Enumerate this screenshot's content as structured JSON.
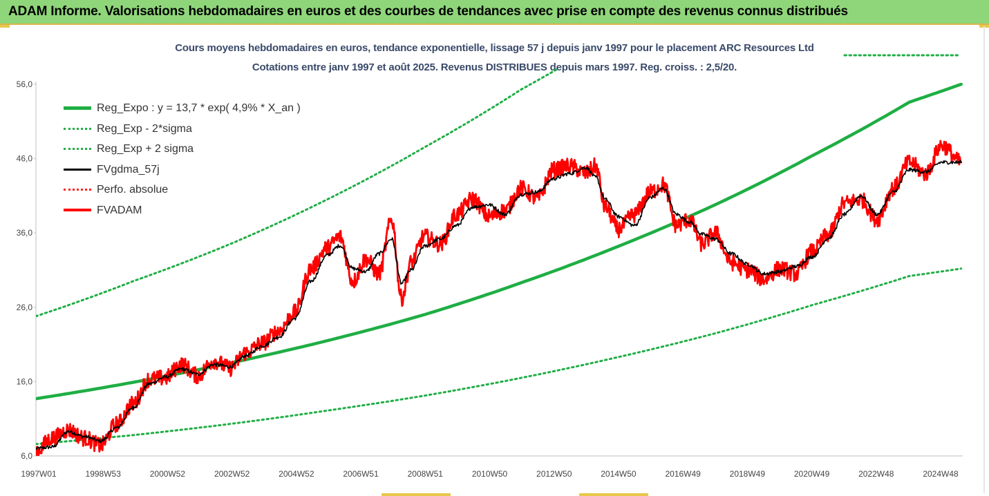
{
  "header": {
    "title": "ADAM Informe. Valorisations hebdomadaires en euros et des courbes de tendances avec prise en compte des revenus connus distribués"
  },
  "chart_data": {
    "type": "line",
    "title": "Cours moyens hebdomadaires en euros, tendance exponentielle, lissage 57 j depuis janv 1997 pour le placement ARC Resources Ltd",
    "subtitle": "Cotations entre janv 1997 et août 2025.  Revenus DISTRIBUES depuis mars 1997. Reg. croiss. : 2,5/20.",
    "xlabel": "",
    "ylabel": "",
    "ylim": [
      6,
      56
    ],
    "xlim": [
      1997.0,
      2025.65
    ],
    "y_ticks": [
      "56,0",
      "46,0",
      "36,0",
      "26,0",
      "16,0",
      "6,0"
    ],
    "x_ticks": [
      "1997W01",
      "1998W53",
      "2000W52",
      "2002W52",
      "2004W52",
      "2006W51",
      "2008W51",
      "2010W50",
      "2012W50",
      "2014W50",
      "2016W49",
      "2018W49",
      "2020W49",
      "2022W48",
      "2024W48"
    ],
    "legend_position": "top-left",
    "colors": {
      "reg_expo": "#1fae44",
      "bands": "#1fae44",
      "fvgdma": "#000000",
      "perfo": "#ff2020",
      "fvadam": "#ff0000"
    },
    "series": [
      {
        "name": "Reg_Expo : y = 13,7 * exp( 4,9% *  X_an )",
        "style": "solid",
        "color": "#1fae44",
        "x": [
          1997.0,
          2000.0,
          2003.0,
          2006.0,
          2009.0,
          2012.0,
          2015.0,
          2018.0,
          2021.0,
          2024.0,
          2025.6
        ],
        "y": [
          13.7,
          15.9,
          18.5,
          21.5,
          25.0,
          29.3,
          34.2,
          39.8,
          46.4,
          53.6,
          56.0
        ]
      },
      {
        "name": "Reg_Exp - 2*sigma",
        "style": "dotted",
        "color": "#1fae44",
        "x": [
          1997.0,
          2000.0,
          2003.0,
          2006.0,
          2009.0,
          2012.0,
          2015.0,
          2018.0,
          2021.0,
          2024.0,
          2025.6
        ],
        "y": [
          7.6,
          8.8,
          10.3,
          12.1,
          14.1,
          16.5,
          19.3,
          22.5,
          26.3,
          30.2,
          31.2
        ]
      },
      {
        "name": "Reg_Exp + 2 sigma",
        "style": "dotted",
        "color": "#1fae44",
        "x": [
          1997.0,
          2000.0,
          2003.0,
          2006.0,
          2009.0,
          2012.0,
          2013.1
        ],
        "y": [
          24.8,
          29.5,
          34.5,
          40.5,
          47.5,
          55.3,
          58.0
        ]
      },
      {
        "name": "FVgdma_57j",
        "style": "solid",
        "color": "#000000",
        "x": [
          1997.0,
          1997.5,
          1998.0,
          1998.5,
          1999.0,
          1999.5,
          2000.0,
          2000.5,
          2001.0,
          2001.5,
          2002.0,
          2002.5,
          2003.0,
          2003.5,
          2004.0,
          2004.5,
          2005.0,
          2005.5,
          2006.0,
          2006.4,
          2006.8,
          2007.2,
          2007.6,
          2008.0,
          2008.3,
          2008.6,
          2009.0,
          2009.5,
          2010.0,
          2010.5,
          2011.0,
          2011.5,
          2012.0,
          2012.5,
          2013.0,
          2013.5,
          2014.0,
          2014.3,
          2014.6,
          2015.0,
          2015.5,
          2016.0,
          2016.4,
          2016.8,
          2017.2,
          2017.6,
          2018.0,
          2018.5,
          2019.0,
          2019.5,
          2020.0,
          2020.5,
          2021.0,
          2021.5,
          2022.0,
          2022.5,
          2023.0,
          2023.5,
          2024.0,
          2024.5,
          2025.0,
          2025.6
        ],
        "y": [
          7.0,
          7.2,
          9.3,
          8.6,
          8.0,
          9.8,
          12.5,
          15.7,
          16.6,
          17.7,
          17.0,
          18.3,
          18.0,
          19.5,
          20.8,
          22.0,
          24.5,
          29.5,
          33.0,
          34.3,
          31.2,
          30.8,
          33.2,
          35.2,
          29.2,
          31.0,
          34.2,
          35.2,
          37.0,
          39.5,
          39.8,
          38.5,
          41.2,
          41.5,
          43.3,
          44.0,
          44.8,
          43.5,
          40.5,
          38.2,
          37.0,
          40.8,
          42.0,
          38.5,
          37.5,
          35.8,
          35.2,
          33.2,
          31.8,
          30.5,
          30.8,
          31.5,
          32.8,
          35.3,
          38.5,
          41.0,
          38.5,
          41.5,
          44.5,
          44.2,
          45.5,
          45.5
        ]
      },
      {
        "name": "Perfo. absolue",
        "style": "dotted",
        "color": "#ff2020",
        "x": [],
        "y": []
      },
      {
        "name": "FVADAM",
        "style": "solid",
        "color": "#ff0000",
        "x": [
          1997.0,
          1997.5,
          1998.0,
          1998.5,
          1999.0,
          1999.5,
          2000.0,
          2000.5,
          2001.0,
          2001.5,
          2002.0,
          2002.5,
          2003.0,
          2003.5,
          2004.0,
          2004.5,
          2005.0,
          2005.5,
          2006.0,
          2006.4,
          2006.8,
          2007.2,
          2007.6,
          2008.0,
          2008.3,
          2008.6,
          2009.0,
          2009.5,
          2010.0,
          2010.5,
          2011.0,
          2011.5,
          2012.0,
          2012.5,
          2013.0,
          2013.5,
          2014.0,
          2014.3,
          2014.6,
          2015.0,
          2015.5,
          2016.0,
          2016.4,
          2016.8,
          2017.2,
          2017.6,
          2018.0,
          2018.5,
          2019.0,
          2019.5,
          2020.0,
          2020.5,
          2021.0,
          2021.5,
          2022.0,
          2022.5,
          2023.0,
          2023.5,
          2024.0,
          2024.5,
          2025.0,
          2025.6
        ],
        "y": [
          6.6,
          8.4,
          9.5,
          8.4,
          7.4,
          10.3,
          13.0,
          16.3,
          16.5,
          18.3,
          16.8,
          18.8,
          17.8,
          19.9,
          21.2,
          22.8,
          25.3,
          31.2,
          34.0,
          35.5,
          29.5,
          32.5,
          30.5,
          37.8,
          27.2,
          32.0,
          35.5,
          34.5,
          38.5,
          40.6,
          38.2,
          39.0,
          42.0,
          40.6,
          44.5,
          45.0,
          44.0,
          45.0,
          39.5,
          36.5,
          38.5,
          41.5,
          42.5,
          37.0,
          37.8,
          34.5,
          36.0,
          32.0,
          31.0,
          29.8,
          31.2,
          30.5,
          33.5,
          35.8,
          40.0,
          40.5,
          37.8,
          42.0,
          45.5,
          44.0,
          47.8,
          45.5
        ]
      }
    ]
  }
}
